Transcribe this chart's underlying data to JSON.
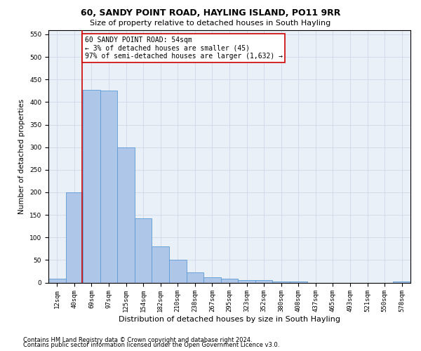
{
  "title": "60, SANDY POINT ROAD, HAYLING ISLAND, PO11 9RR",
  "subtitle": "Size of property relative to detached houses in South Hayling",
  "xlabel": "Distribution of detached houses by size in South Hayling",
  "ylabel": "Number of detached properties",
  "categories": [
    "12sqm",
    "40sqm",
    "69sqm",
    "97sqm",
    "125sqm",
    "154sqm",
    "182sqm",
    "210sqm",
    "238sqm",
    "267sqm",
    "295sqm",
    "323sqm",
    "352sqm",
    "380sqm",
    "408sqm",
    "437sqm",
    "465sqm",
    "493sqm",
    "521sqm",
    "550sqm",
    "578sqm"
  ],
  "values": [
    8,
    200,
    427,
    425,
    300,
    143,
    80,
    50,
    23,
    11,
    8,
    6,
    6,
    2,
    2,
    0,
    0,
    0,
    0,
    0,
    3
  ],
  "bar_color": "#aec6e8",
  "bar_edge_color": "#5b9bd5",
  "vline_x": 1.45,
  "vline_color": "#cc0000",
  "annotation_text": "60 SANDY POINT ROAD: 54sqm\n← 3% of detached houses are smaller (45)\n97% of semi-detached houses are larger (1,632) →",
  "annotation_box_color": "#ffffff",
  "annotation_box_edge_color": "#cc0000",
  "ylim": [
    0,
    560
  ],
  "yticks": [
    0,
    50,
    100,
    150,
    200,
    250,
    300,
    350,
    400,
    450,
    500,
    550
  ],
  "grid_color": "#d0d8e8",
  "background_color": "#eaf0f8",
  "footer_line1": "Contains HM Land Registry data © Crown copyright and database right 2024.",
  "footer_line2": "Contains public sector information licensed under the Open Government Licence v3.0.",
  "title_fontsize": 9,
  "subtitle_fontsize": 8,
  "xlabel_fontsize": 8,
  "ylabel_fontsize": 7.5,
  "tick_fontsize": 6.5,
  "annotation_fontsize": 7,
  "footer_fontsize": 6
}
